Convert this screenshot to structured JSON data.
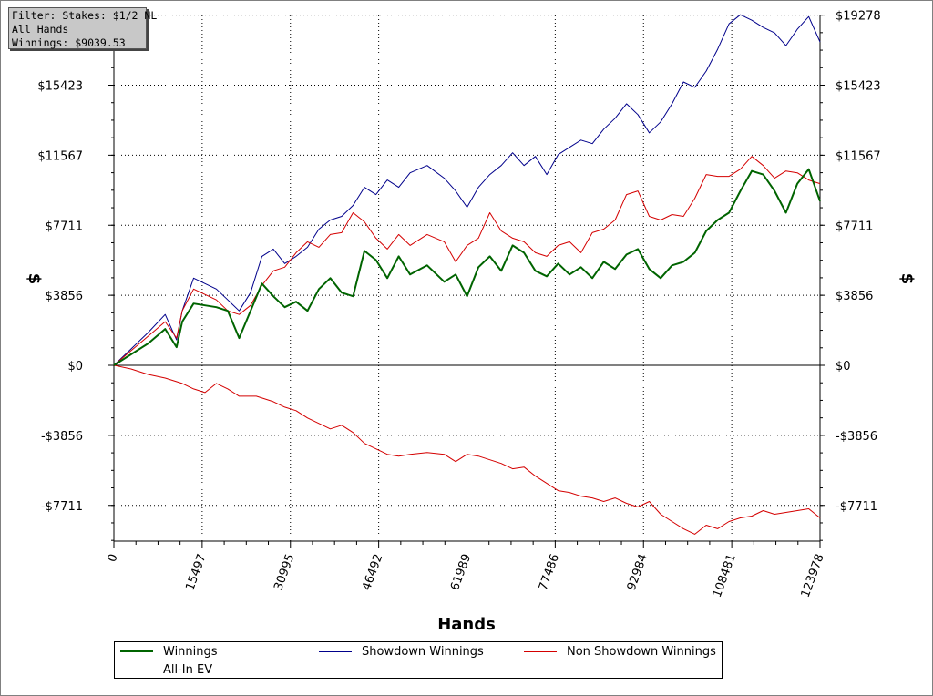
{
  "filter_box": {
    "line1": "Filter: Stakes: $1/2 NL",
    "line2": "All Hands",
    "line3": "Winnings: $9039.53"
  },
  "chart_data": {
    "type": "line",
    "xlabel": "Hands",
    "ylabel_left": "$",
    "ylabel_right": "$",
    "xlim": [
      0,
      123978
    ],
    "ylim": [
      -9500,
      19278
    ],
    "x_ticks": [
      0,
      15497,
      30995,
      46492,
      61989,
      77486,
      92984,
      108481,
      123978
    ],
    "x_tick_labels": [
      "0",
      "15497",
      "30995",
      "46492",
      "61989",
      "77486",
      "92984",
      "108481",
      "123978"
    ],
    "y_ticks": [
      -7711,
      -3856,
      0,
      3856,
      7711,
      11567,
      15423,
      19278
    ],
    "y_tick_labels": [
      "-$7711",
      "-$3856",
      "$0",
      "$3856",
      "$7711",
      "$11567",
      "$15423",
      "$19278"
    ],
    "grid": true,
    "legend_position": "bottom",
    "series": [
      {
        "name": "Winnings",
        "color": "#006400",
        "x": [
          0,
          3000,
          6000,
          9000,
          11000,
          12000,
          14000,
          18000,
          20000,
          22000,
          24000,
          26000,
          28000,
          30000,
          32000,
          34000,
          36000,
          38000,
          40000,
          42000,
          44000,
          46000,
          48000,
          50000,
          52000,
          55000,
          58000,
          60000,
          62000,
          64000,
          66000,
          68000,
          70000,
          72000,
          74000,
          76000,
          78000,
          80000,
          82000,
          84000,
          86000,
          88000,
          90000,
          92000,
          94000,
          96000,
          98000,
          100000,
          102000,
          104000,
          106000,
          108000,
          110000,
          112000,
          114000,
          116000,
          118000,
          120000,
          122000,
          123978
        ],
        "values": [
          0,
          600,
          1200,
          2000,
          1000,
          2400,
          3400,
          3200,
          3000,
          1500,
          3000,
          4500,
          3800,
          3200,
          3500,
          3000,
          4200,
          4800,
          4000,
          3800,
          6300,
          5800,
          4800,
          6000,
          5000,
          5500,
          4600,
          5000,
          3800,
          5400,
          6000,
          5200,
          6600,
          6200,
          5200,
          4900,
          5600,
          5000,
          5400,
          4800,
          5700,
          5300,
          6100,
          6400,
          5300,
          4800,
          5500,
          5700,
          6200,
          7400,
          8000,
          8400,
          9600,
          10700,
          10500,
          9600,
          8400,
          10000,
          10800,
          9040
        ]
      },
      {
        "name": "Showdown Winnings",
        "color": "#00008b",
        "x": [
          0,
          3000,
          6000,
          9000,
          11000,
          12000,
          14000,
          18000,
          20000,
          22000,
          24000,
          26000,
          28000,
          30000,
          32000,
          34000,
          36000,
          38000,
          40000,
          42000,
          44000,
          46000,
          48000,
          50000,
          52000,
          55000,
          58000,
          60000,
          62000,
          64000,
          66000,
          68000,
          70000,
          72000,
          74000,
          76000,
          78000,
          80000,
          82000,
          84000,
          86000,
          88000,
          90000,
          92000,
          94000,
          96000,
          98000,
          100000,
          102000,
          104000,
          106000,
          108000,
          110000,
          112000,
          114000,
          116000,
          118000,
          120000,
          122000,
          123978
        ],
        "values": [
          0,
          900,
          1800,
          2800,
          1400,
          3000,
          4800,
          4200,
          3600,
          3000,
          4000,
          6000,
          6400,
          5600,
          6000,
          6500,
          7500,
          8000,
          8200,
          8800,
          9800,
          9400,
          10200,
          9800,
          10600,
          11000,
          10300,
          9600,
          8700,
          9800,
          10500,
          11000,
          11700,
          11000,
          11500,
          10500,
          11600,
          12000,
          12400,
          12200,
          13000,
          13600,
          14400,
          13800,
          12800,
          13400,
          14400,
          15600,
          15300,
          16200,
          17400,
          18800,
          19300,
          19000,
          18600,
          18300,
          17600,
          18500,
          19200,
          17800
        ]
      },
      {
        "name": "Non Showdown Winnings",
        "color": "#d40000",
        "x": [
          0,
          3000,
          6000,
          9000,
          11000,
          12000,
          14000,
          18000,
          20000,
          22000,
          24000,
          26000,
          28000,
          30000,
          32000,
          34000,
          36000,
          38000,
          40000,
          42000,
          44000,
          46000,
          48000,
          50000,
          52000,
          55000,
          58000,
          60000,
          62000,
          64000,
          66000,
          68000,
          70000,
          72000,
          74000,
          76000,
          78000,
          80000,
          82000,
          84000,
          86000,
          88000,
          90000,
          92000,
          94000,
          96000,
          98000,
          100000,
          102000,
          104000,
          106000,
          108000,
          110000,
          112000,
          114000,
          116000,
          118000,
          120000,
          122000,
          123978
        ],
        "values": [
          0,
          800,
          1600,
          2400,
          1500,
          3000,
          4200,
          3600,
          3000,
          2800,
          3300,
          4400,
          5200,
          5400,
          6200,
          6800,
          6500,
          7200,
          7300,
          8400,
          7900,
          7000,
          6400,
          7200,
          6600,
          7200,
          6800,
          5700,
          6600,
          7000,
          8400,
          7400,
          7000,
          6800,
          6200,
          6000,
          6600,
          6800,
          6200,
          7300,
          7500,
          8000,
          9400,
          9600,
          8200,
          8000,
          8300,
          8200,
          9200,
          10500,
          10400,
          10400,
          10800,
          11500,
          11000,
          10300,
          10700,
          10600,
          10200,
          10000
        ]
      },
      {
        "name": "All-In EV",
        "color": "#d40000",
        "x": [
          0,
          3000,
          6000,
          9000,
          12000,
          14000,
          16000,
          18000,
          20000,
          22000,
          25000,
          28000,
          30000,
          32000,
          34000,
          36000,
          38000,
          40000,
          42000,
          44000,
          46000,
          48000,
          50000,
          52000,
          55000,
          58000,
          60000,
          62000,
          64000,
          66000,
          68000,
          70000,
          72000,
          74000,
          76000,
          78000,
          80000,
          82000,
          84000,
          86000,
          88000,
          90000,
          92000,
          94000,
          96000,
          98000,
          100000,
          102000,
          104000,
          106000,
          108000,
          110000,
          112000,
          114000,
          116000,
          118000,
          120000,
          122000,
          123978
        ],
        "values": [
          0,
          -200,
          -500,
          -700,
          -1000,
          -1300,
          -1500,
          -1000,
          -1300,
          -1700,
          -1700,
          -2000,
          -2300,
          -2500,
          -2900,
          -3200,
          -3500,
          -3300,
          -3700,
          -4300,
          -4600,
          -4900,
          -5000,
          -4900,
          -4800,
          -4900,
          -5300,
          -4900,
          -5000,
          -5200,
          -5400,
          -5700,
          -5600,
          -6100,
          -6500,
          -6900,
          -7000,
          -7200,
          -7300,
          -7500,
          -7300,
          -7600,
          -7800,
          -7500,
          -8200,
          -8600,
          -9000,
          -9300,
          -8800,
          -9000,
          -8600,
          -8400,
          -8300,
          -8000,
          -8200,
          -8100,
          -8000,
          -7900,
          -8400
        ]
      }
    ]
  }
}
